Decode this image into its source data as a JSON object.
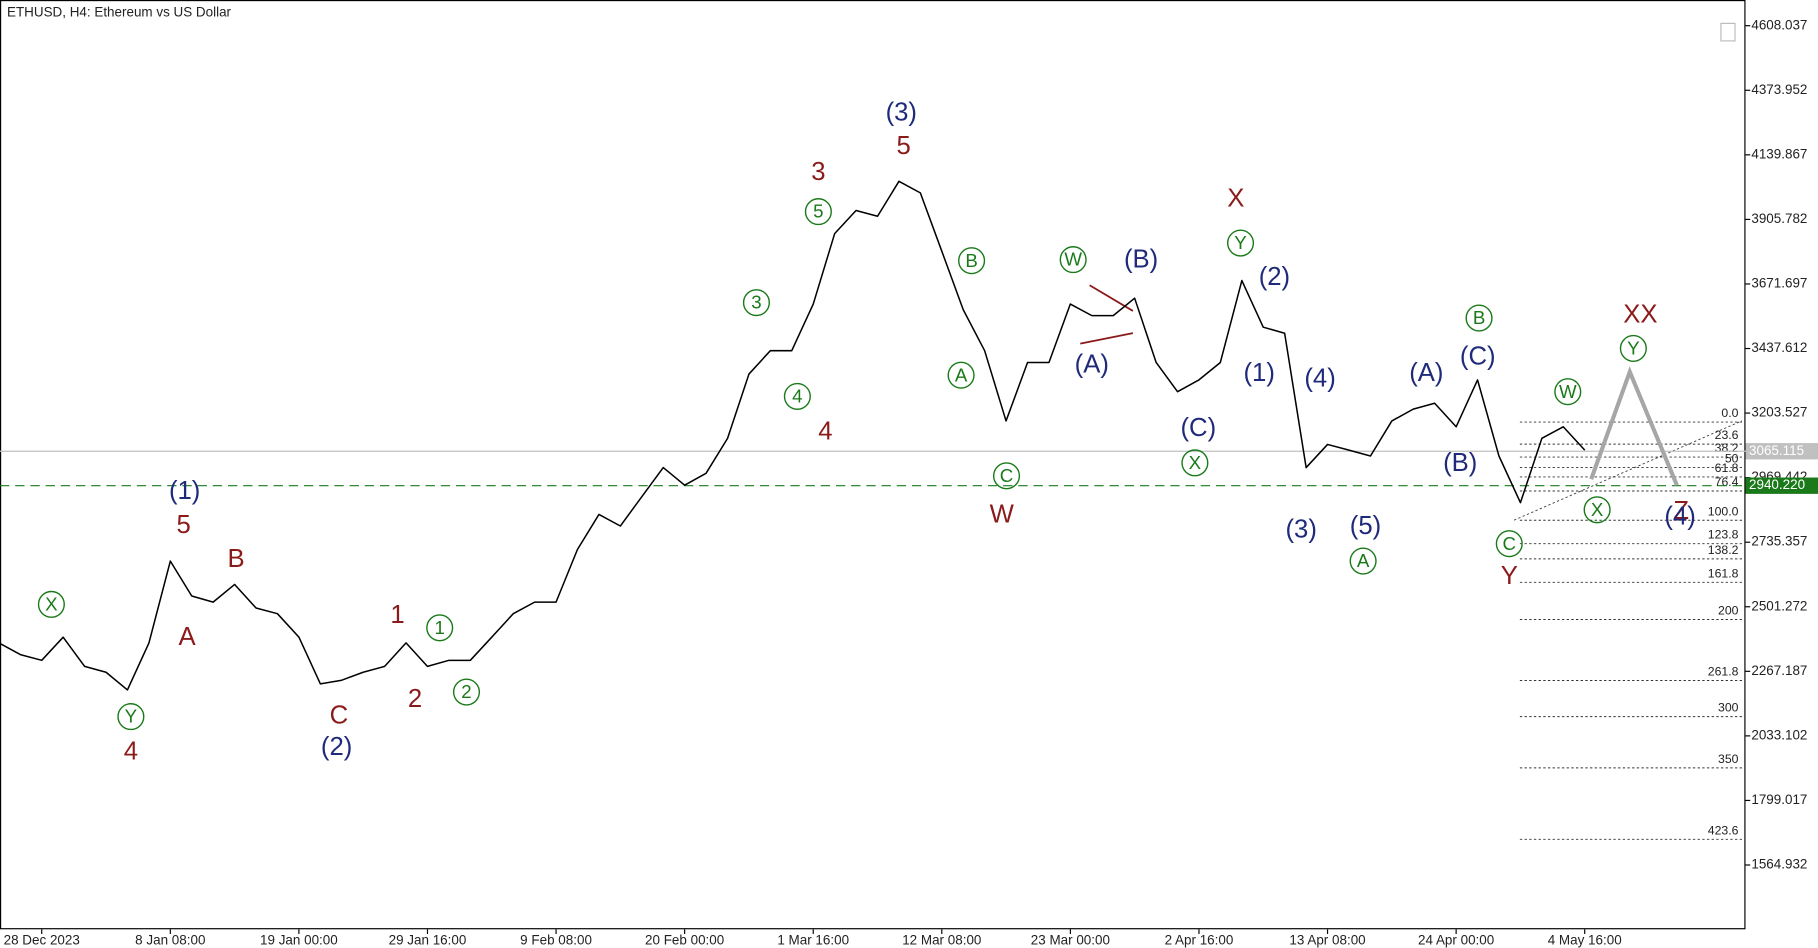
{
  "chart_data": {
    "type": "line",
    "title": "ETHUSD, H4:  Ethereum vs US Dollar",
    "categories": [
      null,
      null,
      "28 Dec 2023",
      null,
      null,
      null,
      null,
      null,
      "8 Jan 08:00",
      null,
      null,
      null,
      null,
      null,
      "19 Jan 00:00",
      null,
      null,
      null,
      null,
      null,
      "29 Jan 16:00",
      null,
      null,
      null,
      null,
      null,
      "9 Feb 08:00",
      null,
      null,
      null,
      null,
      null,
      "20 Feb 00:00",
      null,
      null,
      null,
      null,
      null,
      "1 Mar 16:00",
      null,
      null,
      null,
      null,
      null,
      "12 Mar 08:00",
      null,
      null,
      null,
      null,
      null,
      "23 Mar 00:00",
      null,
      null,
      null,
      null,
      null,
      "2 Apr 16:00",
      null,
      null,
      null,
      null,
      null,
      "13 Apr 08:00",
      null,
      null,
      null,
      null,
      null,
      "24 Apr 00:00",
      null,
      null,
      null,
      null,
      null,
      "4 May 16:00",
      null,
      null,
      null,
      null,
      null
    ],
    "series": [
      {
        "color": "#000000",
        "values": [
          2370,
          2328,
          2307,
          2391,
          2285,
          2264,
          2200,
          2370,
          2667,
          2540,
          2518,
          2582,
          2497,
          2476,
          2391,
          2222,
          2235,
          2264,
          2285,
          2370,
          2285,
          2307,
          2307,
          2391,
          2476,
          2518,
          2518,
          2709,
          2836,
          2794,
          2900,
          3006,
          2942,
          2985,
          3112,
          3345,
          3430,
          3430,
          3599,
          3854,
          3938,
          3917,
          4044,
          4002,
          3790,
          3578,
          3430,
          3175,
          3387,
          3387,
          3599,
          3557,
          3557,
          3620,
          3387,
          3281,
          3324,
          3387,
          3684,
          3515,
          3493,
          3006,
          3090,
          3069,
          3048,
          3175,
          3218,
          3239,
          3154,
          3324,
          3048,
          2879,
          3112,
          3154,
          3069,
          null,
          null,
          null,
          null,
          null
        ]
      }
    ],
    "projection": {
      "color": "#a6a6a6",
      "at": [
        74.3,
        76.1,
        78.3
      ],
      "values": [
        2964,
        3353,
        2942
      ]
    },
    "ylim": [
      1331.8,
      4701.3
    ],
    "yticks": [
      4608.037,
      4373.952,
      4139.867,
      3905.782,
      3671.697,
      3437.612,
      3203.527,
      2969.442,
      2735.357,
      2501.272,
      2267.187,
      2033.102,
      1799.017,
      1564.932
    ],
    "price_lines": [
      {
        "value": 3065.115,
        "color": "#c0c0c0",
        "style": "solid"
      },
      {
        "value": {
          "value": 2940.22,
          "label": "2940.220"
        },
        "color": "#1a7a1a",
        "style": "dashed"
      }
    ],
    "fib_levels": [
      {
        "label": "0.0",
        "price": 3171
      },
      {
        "label": "23.6",
        "price": 3091
      },
      {
        "label": "38.2",
        "price": 3044
      },
      {
        "label": "50",
        "price": 3006
      },
      {
        "label": "61.8",
        "price": 2972
      },
      {
        "label": "76.4",
        "price": 2921
      },
      {
        "label": "100.0",
        "price": 2815
      },
      {
        "label": "123.8",
        "price": 2730
      },
      {
        "label": "138.2",
        "price": 2675
      },
      {
        "label": "161.8",
        "price": 2590
      },
      {
        "label": "200",
        "price": 2455
      },
      {
        "label": "261.8",
        "price": 2234
      },
      {
        "label": "300",
        "price": 2103
      },
      {
        "label": "350",
        "price": 1917
      },
      {
        "label": "423.6",
        "price": 1658
      }
    ],
    "annotations": [
      {
        "text": "X",
        "at": 2.45,
        "price": 2510,
        "color": "#1a7a1a",
        "circled": true
      },
      {
        "text": "Y",
        "at": 6.16,
        "price": 2103,
        "color": "#1a7a1a",
        "circled": true
      },
      {
        "text": "4",
        "at": 6.16,
        "price": 1976,
        "color": "#8b1a1a",
        "circled": false
      },
      {
        "text": "(1)",
        "at": 8.67,
        "price": 2921,
        "color": "#1f2a7a",
        "circled": false
      },
      {
        "text": "5",
        "at": 8.62,
        "price": 2798,
        "color": "#8b1a1a",
        "circled": false
      },
      {
        "text": "A",
        "at": 8.78,
        "price": 2391,
        "color": "#8b1a1a",
        "circled": false
      },
      {
        "text": "B",
        "at": 11.07,
        "price": 2675,
        "color": "#8b1a1a",
        "circled": false
      },
      {
        "text": "C",
        "at": 15.87,
        "price": 2107,
        "color": "#8b1a1a",
        "circled": false
      },
      {
        "text": "(2)",
        "at": 15.76,
        "price": 1993,
        "color": "#1f2a7a",
        "circled": false
      },
      {
        "text": "1",
        "at": 18.6,
        "price": 2472,
        "color": "#8b1a1a",
        "circled": false
      },
      {
        "text": "2",
        "at": 19.42,
        "price": 2167,
        "color": "#8b1a1a",
        "circled": false
      },
      {
        "text": "1",
        "at": 20.57,
        "price": 2425,
        "color": "#1a7a1a",
        "circled": true
      },
      {
        "text": "2",
        "at": 21.82,
        "price": 2192,
        "color": "#1a7a1a",
        "circled": true
      },
      {
        "text": "3",
        "at": 35.35,
        "price": 3604,
        "color": "#1a7a1a",
        "circled": true
      },
      {
        "text": "4",
        "at": 37.26,
        "price": 3264,
        "color": "#1a7a1a",
        "circled": true
      },
      {
        "text": "5",
        "at": 38.24,
        "price": 3934,
        "color": "#1a7a1a",
        "circled": true
      },
      {
        "text": "3",
        "at": 38.24,
        "price": 4078,
        "color": "#8b1a1a",
        "circled": false
      },
      {
        "text": "4",
        "at": 38.57,
        "price": 3137,
        "color": "#8b1a1a",
        "circled": false
      },
      {
        "text": "5",
        "at": 42.22,
        "price": 4171,
        "color": "#8b1a1a",
        "circled": false
      },
      {
        "text": "(3)",
        "at": 42.11,
        "price": 4294,
        "color": "#1f2a7a",
        "circled": false
      },
      {
        "text": "B",
        "at": 45.39,
        "price": 3756,
        "color": "#1a7a1a",
        "circled": true
      },
      {
        "text": "A",
        "at": 44.9,
        "price": 3341,
        "color": "#1a7a1a",
        "circled": true
      },
      {
        "text": "C",
        "at": 47.02,
        "price": 2976,
        "color": "#1a7a1a",
        "circled": true
      },
      {
        "text": "W",
        "at": 46.8,
        "price": 2836,
        "color": "#8b1a1a",
        "circled": false
      },
      {
        "text": "W",
        "at": 50.13,
        "price": 3760,
        "color": "#1a7a1a",
        "circled": true
      },
      {
        "text": "(A)",
        "at": 51.0,
        "price": 3379,
        "color": "#1f2a7a",
        "circled": false
      },
      {
        "text": "(B)",
        "at": 53.3,
        "price": 3760,
        "color": "#1f2a7a",
        "circled": false
      },
      {
        "text": "(C)",
        "at": 55.97,
        "price": 3150,
        "color": "#1f2a7a",
        "circled": false
      },
      {
        "text": "X",
        "at": 55.81,
        "price": 3023,
        "color": "#1a7a1a",
        "circled": true
      },
      {
        "text": "X",
        "at": 57.72,
        "price": 3981,
        "color": "#8b1a1a",
        "circled": false
      },
      {
        "text": "Y",
        "at": 57.94,
        "price": 3820,
        "color": "#1a7a1a",
        "circled": true
      },
      {
        "text": "(2)",
        "at": 59.52,
        "price": 3697,
        "color": "#1f2a7a",
        "circled": false
      },
      {
        "text": "(1)",
        "at": 58.81,
        "price": 3349,
        "color": "#1f2a7a",
        "circled": false
      },
      {
        "text": "(4)",
        "at": 61.65,
        "price": 3328,
        "color": "#1f2a7a",
        "circled": false
      },
      {
        "text": "(3)",
        "at": 60.77,
        "price": 2781,
        "color": "#1f2a7a",
        "circled": false
      },
      {
        "text": "(5)",
        "at": 63.77,
        "price": 2794,
        "color": "#1f2a7a",
        "circled": false
      },
      {
        "text": "A",
        "at": 63.66,
        "price": 2667,
        "color": "#1a7a1a",
        "circled": true
      },
      {
        "text": "(A)",
        "at": 66.61,
        "price": 3349,
        "color": "#1f2a7a",
        "circled": false
      },
      {
        "text": "B",
        "at": 69.07,
        "price": 3548,
        "color": "#1a7a1a",
        "circled": true
      },
      {
        "text": "(C)",
        "at": 69.01,
        "price": 3409,
        "color": "#1f2a7a",
        "circled": false
      },
      {
        "text": "(B)",
        "at": 68.19,
        "price": 3023,
        "color": "#1f2a7a",
        "circled": false
      },
      {
        "text": "C",
        "at": 70.48,
        "price": 2730,
        "color": "#1a7a1a",
        "circled": true
      },
      {
        "text": "Y",
        "at": 70.48,
        "price": 2612,
        "color": "#8b1a1a",
        "circled": false
      },
      {
        "text": "W",
        "at": 73.21,
        "price": 3281,
        "color": "#1a7a1a",
        "circled": true
      },
      {
        "text": "X",
        "at": 74.58,
        "price": 2853,
        "color": "#1a7a1a",
        "circled": true
      },
      {
        "text": "Y",
        "at": 76.27,
        "price": 3438,
        "color": "#1a7a1a",
        "circled": true
      },
      {
        "text": "XX",
        "at": 76.6,
        "price": 3561,
        "color": "#8b1a1a",
        "circled": false
      },
      {
        "text": "Z",
        "at": 78.5,
        "price": 2849,
        "color": "#8b1a1a",
        "circled": false
      },
      {
        "text": "(4)",
        "at": 78.45,
        "price": 2828,
        "color": "#1f2a7a",
        "circled": false
      }
    ]
  }
}
